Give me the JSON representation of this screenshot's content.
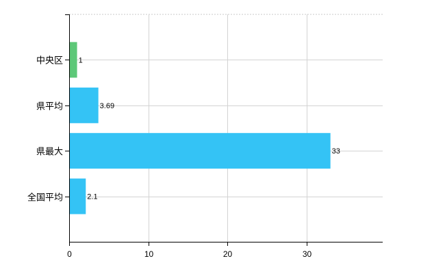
{
  "chart_data": {
    "type": "bar",
    "orientation": "horizontal",
    "categories": [
      "中央区",
      "県平均",
      "県最大",
      "全国平均"
    ],
    "values": [
      1,
      3.69,
      33,
      2.1
    ],
    "data_labels": [
      "1",
      "3.69",
      "33",
      "2.1"
    ],
    "bar_colors": [
      "#5dc878",
      "#34c3f5",
      "#34c3f5",
      "#34c3f5"
    ],
    "x_ticks": [
      0,
      10,
      20,
      30
    ],
    "xlim": [
      0,
      39.6
    ],
    "title": "",
    "xlabel": "",
    "ylabel": "",
    "grid": true,
    "legend": "none"
  }
}
